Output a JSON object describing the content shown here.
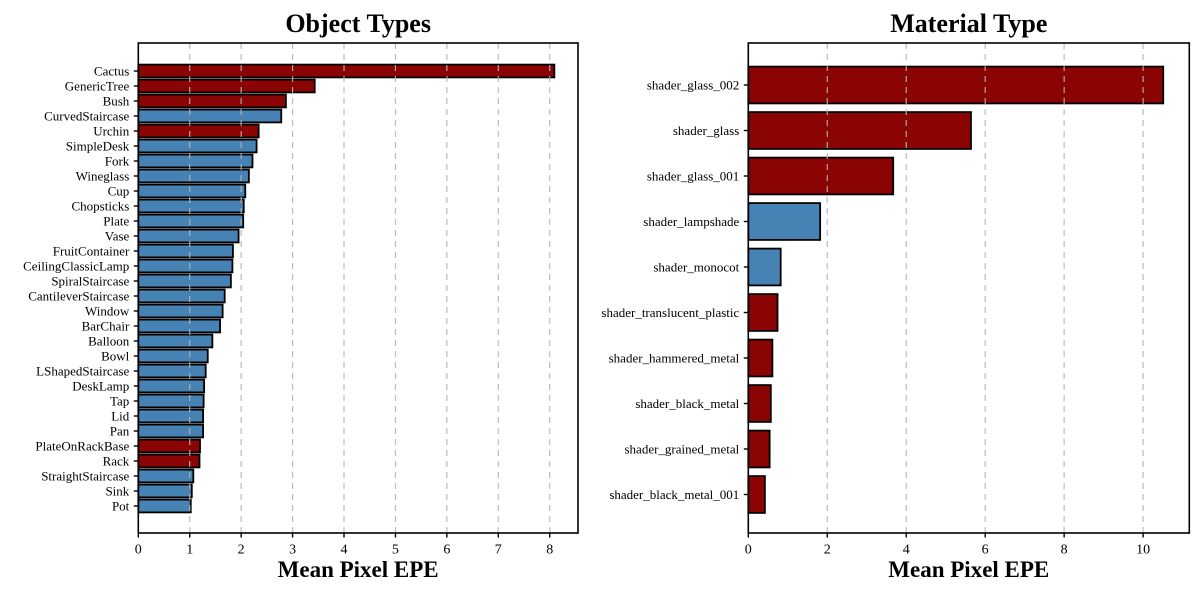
{
  "figure": {
    "background": "#ffffff"
  },
  "colors": {
    "bar_red": "#8B0404",
    "bar_blue": "#4682B4",
    "bar_edge": "#000000",
    "grid": "#b5b5b5",
    "axis": "#000000",
    "text": "#000000"
  },
  "chart_data": [
    {
      "id": "object-types",
      "type": "bar",
      "orientation": "horizontal",
      "title": "Object Types",
      "xlabel": "Mean Pixel EPE",
      "ylabel": "",
      "xlim": [
        0,
        8.55
      ],
      "xticks": [
        0,
        1,
        2,
        3,
        4,
        5,
        6,
        7,
        8
      ],
      "grid": true,
      "legend": null,
      "categories": [
        "Cactus",
        "GenericTree",
        "Bush",
        "CurvedStaircase",
        "Urchin",
        "SimpleDesk",
        "Fork",
        "Wineglass",
        "Cup",
        "Chopsticks",
        "Plate",
        "Vase",
        "FruitContainer",
        "CeilingClassicLamp",
        "SpiralStaircase",
        "CantileverStaircase",
        "Window",
        "BarChair",
        "Balloon",
        "Bowl",
        "LShapedStaircase",
        "DeskLamp",
        "Tap",
        "Lid",
        "Pan",
        "PlateOnRackBase",
        "Rack",
        "StraightStaircase",
        "Sink",
        "Pot"
      ],
      "values": [
        8.09,
        3.43,
        2.87,
        2.78,
        2.34,
        2.3,
        2.22,
        2.15,
        2.08,
        2.05,
        2.04,
        1.95,
        1.84,
        1.83,
        1.8,
        1.68,
        1.64,
        1.59,
        1.44,
        1.35,
        1.31,
        1.28,
        1.27,
        1.26,
        1.26,
        1.2,
        1.19,
        1.07,
        1.04,
        1.02
      ],
      "color_groups": [
        "red",
        "red",
        "red",
        "blue",
        "red",
        "blue",
        "blue",
        "blue",
        "blue",
        "blue",
        "blue",
        "blue",
        "blue",
        "blue",
        "blue",
        "blue",
        "blue",
        "blue",
        "blue",
        "blue",
        "blue",
        "blue",
        "blue",
        "blue",
        "blue",
        "red",
        "red",
        "blue",
        "blue",
        "blue"
      ]
    },
    {
      "id": "material-type",
      "type": "bar",
      "orientation": "horizontal",
      "title": "Material Type",
      "xlabel": "Mean Pixel EPE",
      "ylabel": "",
      "xlim": [
        0,
        11.17
      ],
      "xticks": [
        0,
        2,
        4,
        6,
        8,
        10
      ],
      "grid": true,
      "legend": null,
      "categories": [
        "shader_glass_002",
        "shader_glass",
        "shader_glass_001",
        "shader_lampshade",
        "shader_monocot",
        "shader_translucent_plastic",
        "shader_hammered_metal",
        "shader_black_metal",
        "shader_grained_metal",
        "shader_black_metal_001"
      ],
      "values": [
        10.51,
        5.64,
        3.67,
        1.82,
        0.82,
        0.74,
        0.61,
        0.57,
        0.54,
        0.42
      ],
      "color_groups": [
        "red",
        "red",
        "red",
        "blue",
        "blue",
        "red",
        "red",
        "red",
        "red",
        "red"
      ]
    }
  ]
}
